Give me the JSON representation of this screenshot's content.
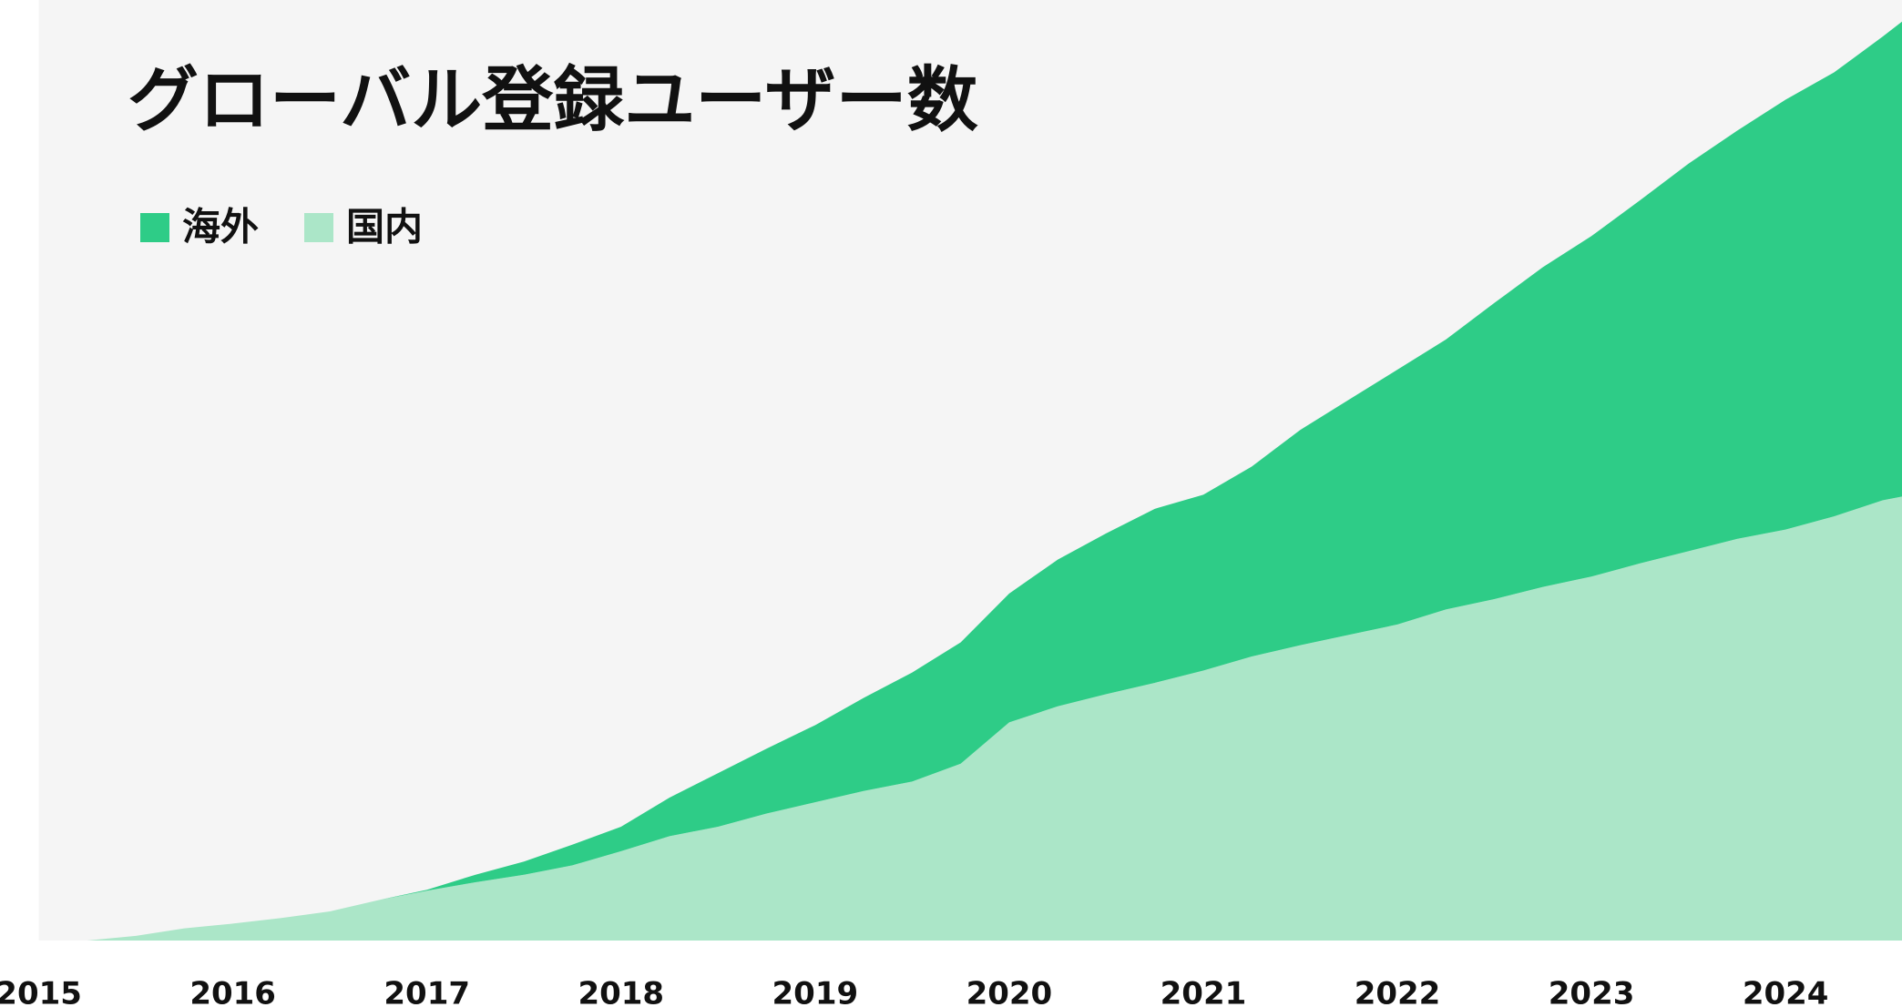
{
  "chart_data": {
    "type": "stacked-area",
    "title": "グローバル登録ユーザー数",
    "x": [
      2015,
      2015.25,
      2015.5,
      2015.75,
      2016,
      2016.25,
      2016.5,
      2016.75,
      2017,
      2017.25,
      2017.5,
      2017.75,
      2018,
      2018.25,
      2018.5,
      2018.75,
      2019,
      2019.25,
      2019.5,
      2019.75,
      2020,
      2020.25,
      2020.5,
      2020.75,
      2021,
      2021.25,
      2021.5,
      2021.75,
      2022,
      2022.25,
      2022.5,
      2022.75,
      2023,
      2023.25,
      2023.5,
      2023.75,
      2024,
      2024.25,
      2024.5,
      2024.6
    ],
    "series": [
      {
        "name": "海外",
        "color": "#2ecc87",
        "values": [
          0,
          0,
          0,
          0,
          0,
          0,
          0,
          0,
          0.1,
          0.8,
          1.4,
          2.2,
          2.6,
          4.1,
          5.7,
          6.9,
          8.2,
          9.9,
          11.6,
          12.9,
          13.7,
          15.6,
          17.1,
          18.5,
          18.7,
          20.2,
          22.9,
          25.0,
          27.1,
          28.7,
          31.5,
          34.0,
          36.2,
          38.6,
          41.2,
          43.4,
          45.7,
          47.2,
          49.3,
          50.5
        ]
      },
      {
        "name": "国内",
        "color": "#abe6c8",
        "values": [
          0,
          0,
          0.5,
          1.3,
          1.8,
          2.4,
          3.1,
          4.3,
          5.3,
          6.2,
          7.0,
          8.0,
          9.5,
          11.1,
          12.1,
          13.5,
          14.7,
          15.9,
          16.9,
          18.8,
          23.2,
          24.9,
          26.2,
          27.4,
          28.7,
          30.2,
          31.4,
          32.5,
          33.6,
          35.2,
          36.3,
          37.6,
          38.7,
          40.1,
          41.4,
          42.7,
          43.7,
          45.1,
          46.8,
          47.2
        ]
      }
    ],
    "xlim": [
      2015,
      2024.6
    ],
    "xticks": [
      2015,
      2016,
      2017,
      2018,
      2019,
      2020,
      2021,
      2022,
      2023,
      2024
    ],
    "ylim": [
      0,
      100
    ],
    "background": "#f5f5f5"
  }
}
